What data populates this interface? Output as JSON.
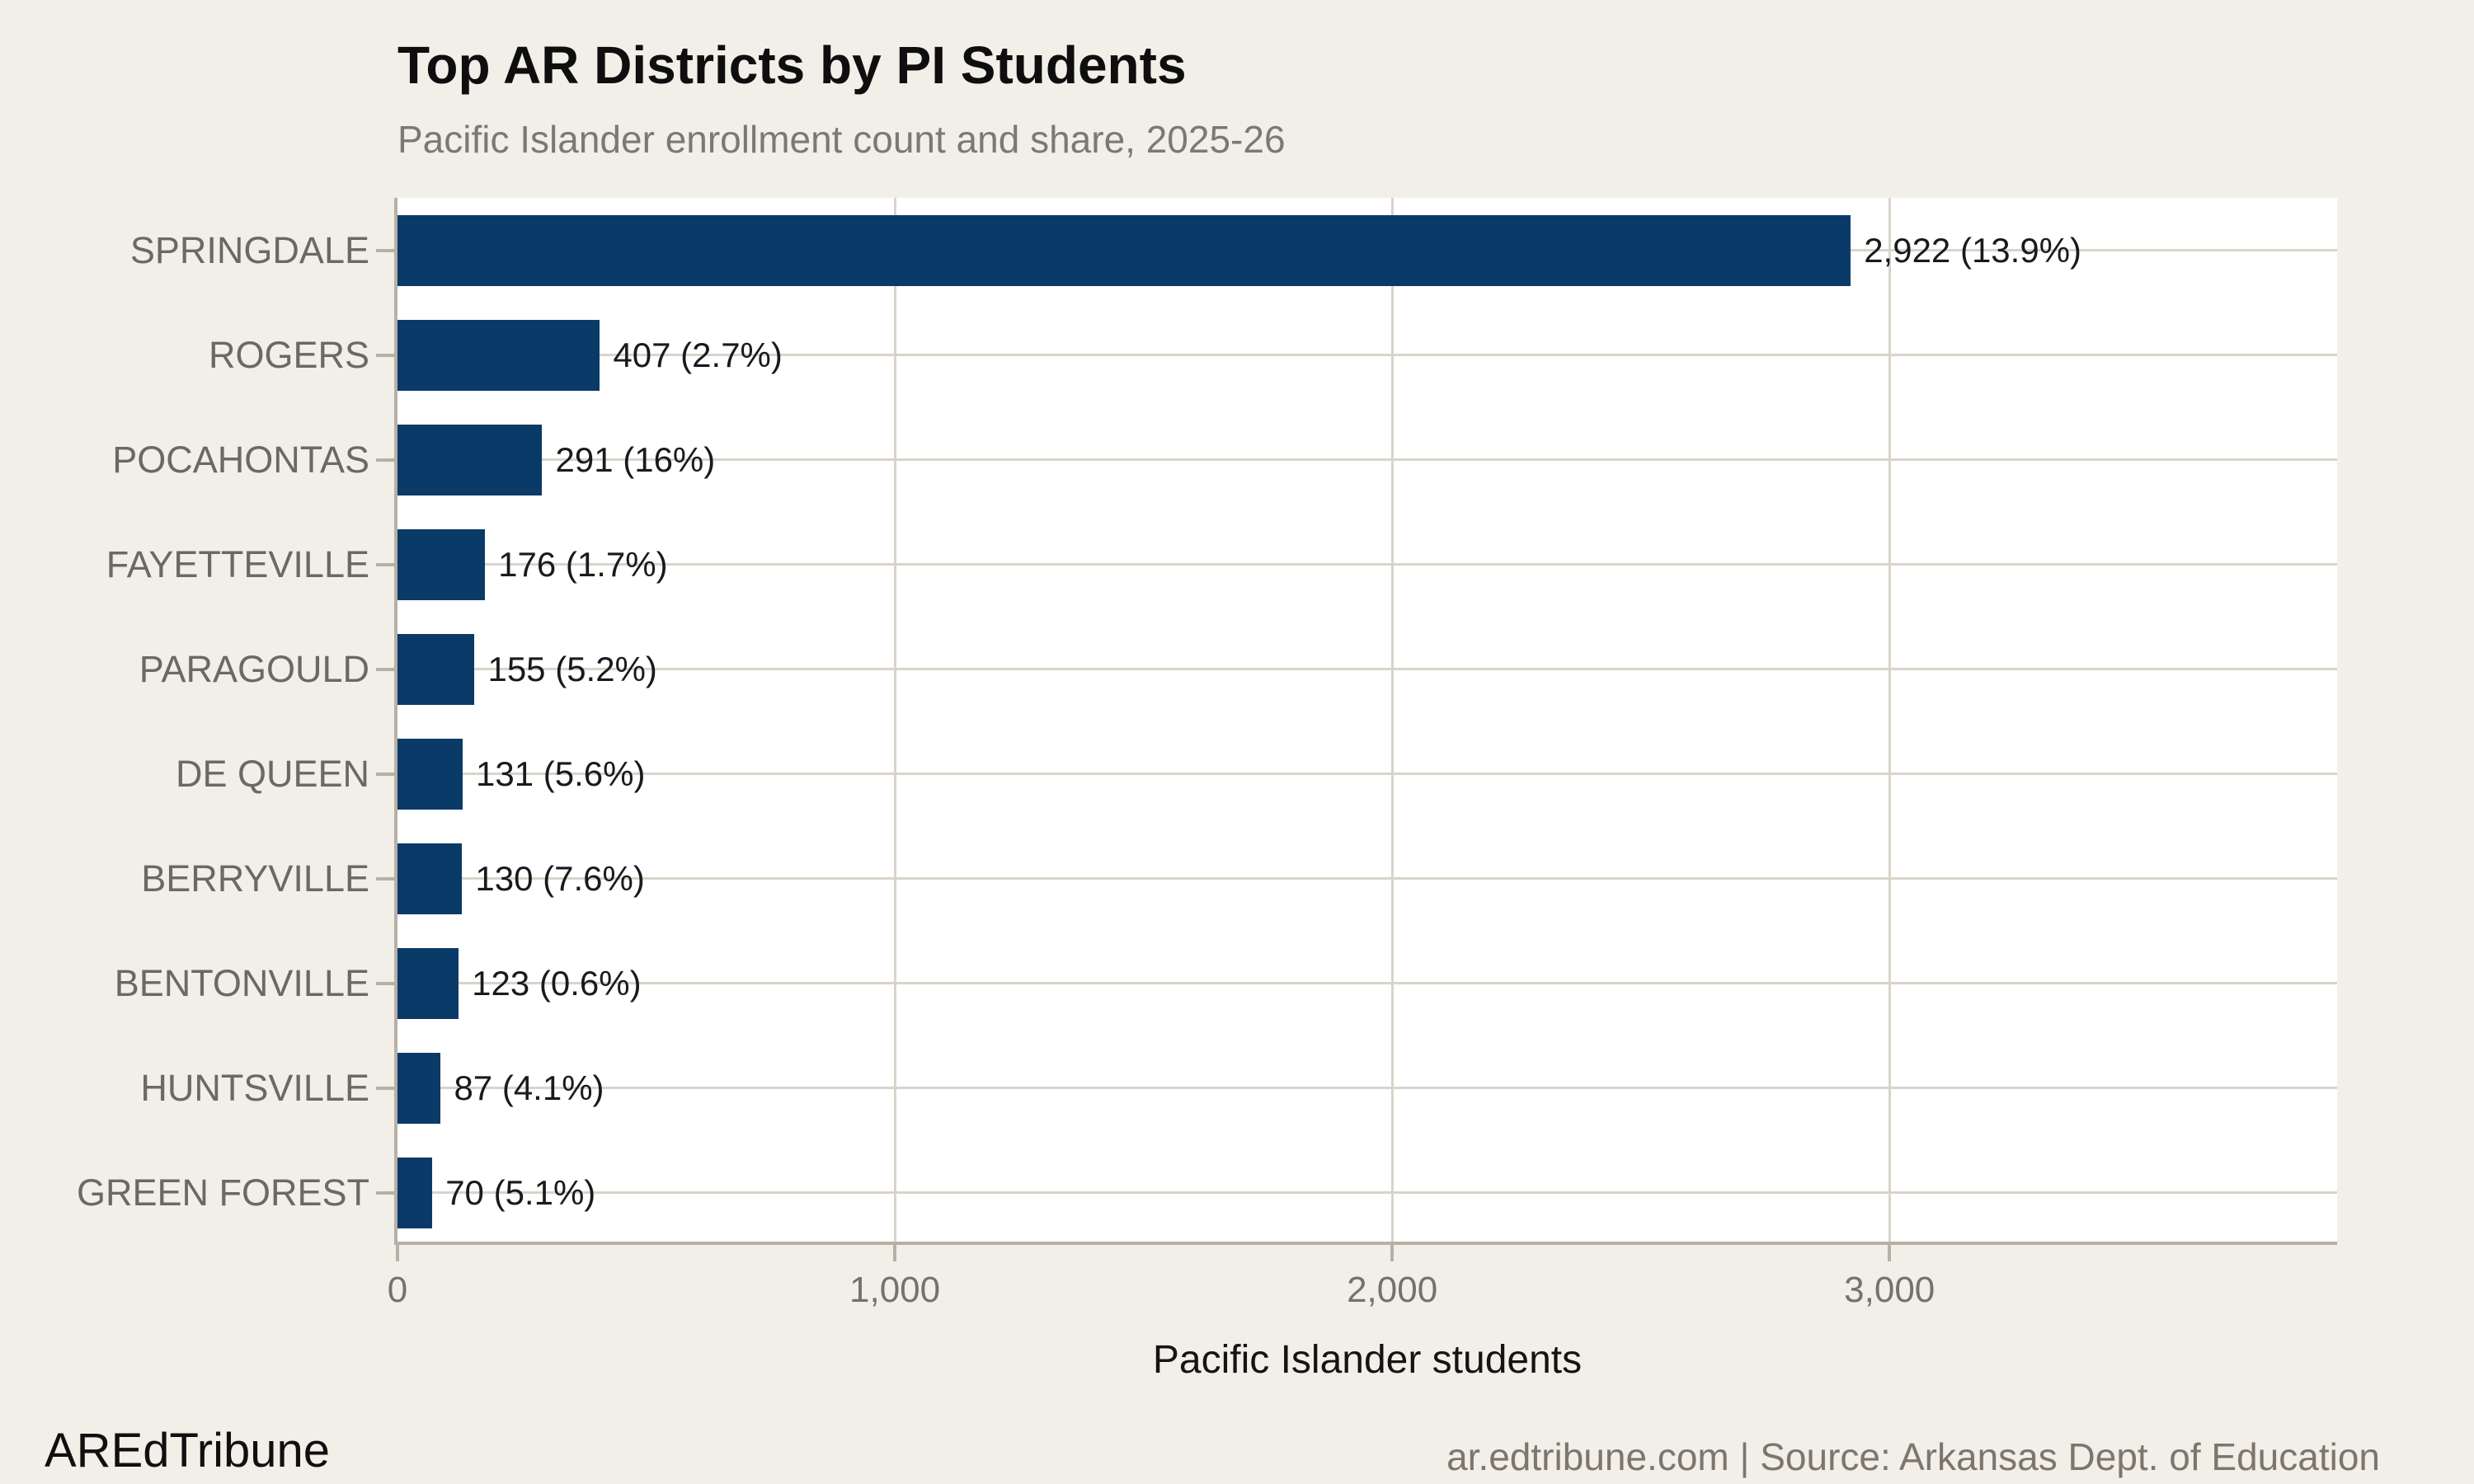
{
  "header": {
    "title": "Top AR Districts by PI Students",
    "subtitle": "Pacific Islander enrollment count and share, 2025-26"
  },
  "footer": {
    "brand": "AREdTribune",
    "source": "ar.edtribune.com | Source: Arkansas Dept. of Education"
  },
  "chart_data": {
    "type": "bar",
    "orientation": "horizontal",
    "title": "Top AR Districts by PI Students",
    "subtitle": "Pacific Islander enrollment count and share, 2025-26",
    "xlabel": "Pacific Islander students",
    "categories": [
      "SPRINGDALE",
      "ROGERS",
      "POCAHONTAS",
      "FAYETTEVILLE",
      "PARAGOULD",
      "DE QUEEN",
      "BERRYVILLE",
      "BENTONVILLE",
      "HUNTSVILLE",
      "GREEN FOREST"
    ],
    "values": [
      2922,
      407,
      291,
      176,
      155,
      131,
      130,
      123,
      87,
      70
    ],
    "shares": [
      "13.9%",
      "2.7%",
      "16%",
      "1.7%",
      "5.2%",
      "5.6%",
      "7.6%",
      "0.6%",
      "4.1%",
      "5.1%"
    ],
    "bar_labels": [
      "2,922 (13.9%)",
      "407 (2.7%)",
      "291 (16%)",
      "176 (1.7%)",
      "155 (5.2%)",
      "131 (5.6%)",
      "130 (7.6%)",
      "123 (0.6%)",
      "87 (4.1%)",
      "70 (5.1%)"
    ],
    "xlim": [
      0,
      3900
    ],
    "xticks": {
      "values": [
        0,
        1000,
        2000,
        3000
      ],
      "labels": [
        "0",
        "1,000",
        "2,000",
        "3,000"
      ]
    },
    "grid": "major-x-and-y",
    "legend": "none"
  },
  "colors": {
    "background": "#f2efe9",
    "plot_background": "#ffffff",
    "bar": "#0a3a68",
    "gridline": "#d9d4ca",
    "axis_line": "#b7b0a5",
    "category_label": "#6b6965",
    "tick_label": "#76716a",
    "value_label": "#1a1a1a",
    "title": "#0e0e0e",
    "subtitle": "#7c7872",
    "footer_brand": "#101010",
    "footer_source": "#7c766d"
  }
}
